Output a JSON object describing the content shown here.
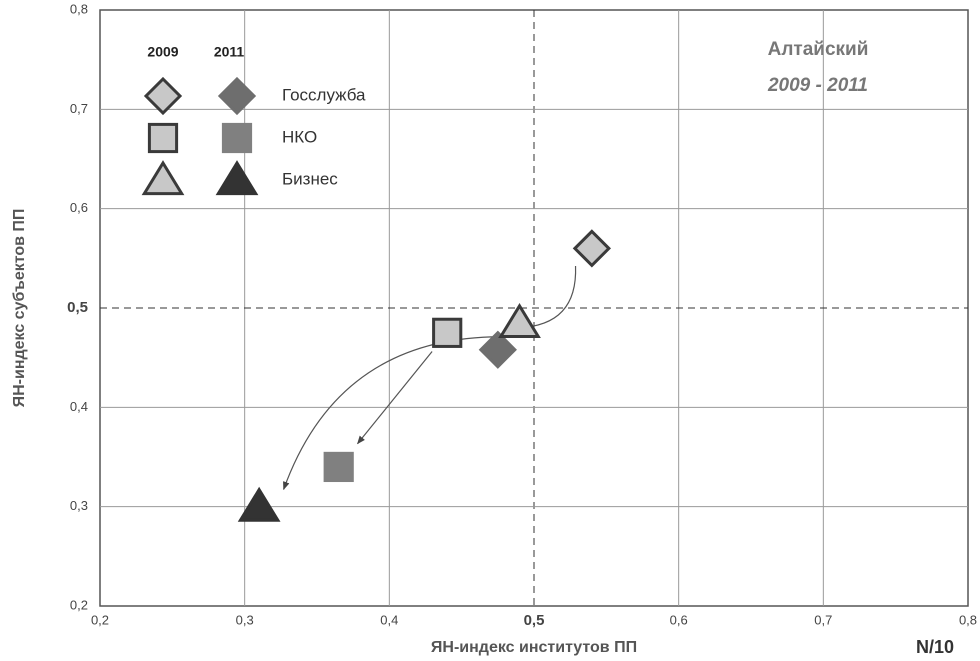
{
  "chart_data": {
    "type": "scatter",
    "x_label": "ЯН-индекс институтов ПП",
    "y_label": "ЯН-индекс субъектов ПП",
    "note": "N/10",
    "annotation": {
      "title": "Алтайский",
      "subtitle": "2009 - 2011"
    },
    "legend_columns": [
      "2009",
      "2011"
    ],
    "xlim": [
      0.2,
      0.8
    ],
    "ylim": [
      0.2,
      0.8
    ],
    "xticks": [
      {
        "value": 0.2,
        "label": "0,2"
      },
      {
        "value": 0.3,
        "label": "0,3"
      },
      {
        "value": 0.4,
        "label": "0,4"
      },
      {
        "value": 0.5,
        "label": "0,5"
      },
      {
        "value": 0.6,
        "label": "0,6"
      },
      {
        "value": 0.7,
        "label": "0,7"
      },
      {
        "value": 0.8,
        "label": "0,8"
      }
    ],
    "yticks": [
      {
        "value": 0.2,
        "label": "0,2"
      },
      {
        "value": 0.3,
        "label": "0,3"
      },
      {
        "value": 0.4,
        "label": "0,4"
      },
      {
        "value": 0.5,
        "label": "0,5"
      },
      {
        "value": 0.6,
        "label": "0,6"
      },
      {
        "value": 0.7,
        "label": "0,7"
      },
      {
        "value": 0.8,
        "label": "0,8"
      }
    ],
    "grid": true,
    "series": [
      {
        "name": "Госслужба",
        "marker": "diamond",
        "colors": [
          "#c8c8c8",
          "#6e6e6e"
        ],
        "x": [
          0.54,
          0.475
        ],
        "y": [
          0.56,
          0.458
        ]
      },
      {
        "name": "НКО",
        "marker": "square",
        "colors": [
          "#c8c8c8",
          "#808080"
        ],
        "x": [
          0.44,
          0.365
        ],
        "y": [
          0.475,
          0.34
        ]
      },
      {
        "name": "Бизнес",
        "marker": "triangle",
        "colors": [
          "#c8c8c8",
          "#333333"
        ],
        "x": [
          0.49,
          0.31
        ],
        "y": [
          0.485,
          0.3
        ]
      }
    ]
  }
}
